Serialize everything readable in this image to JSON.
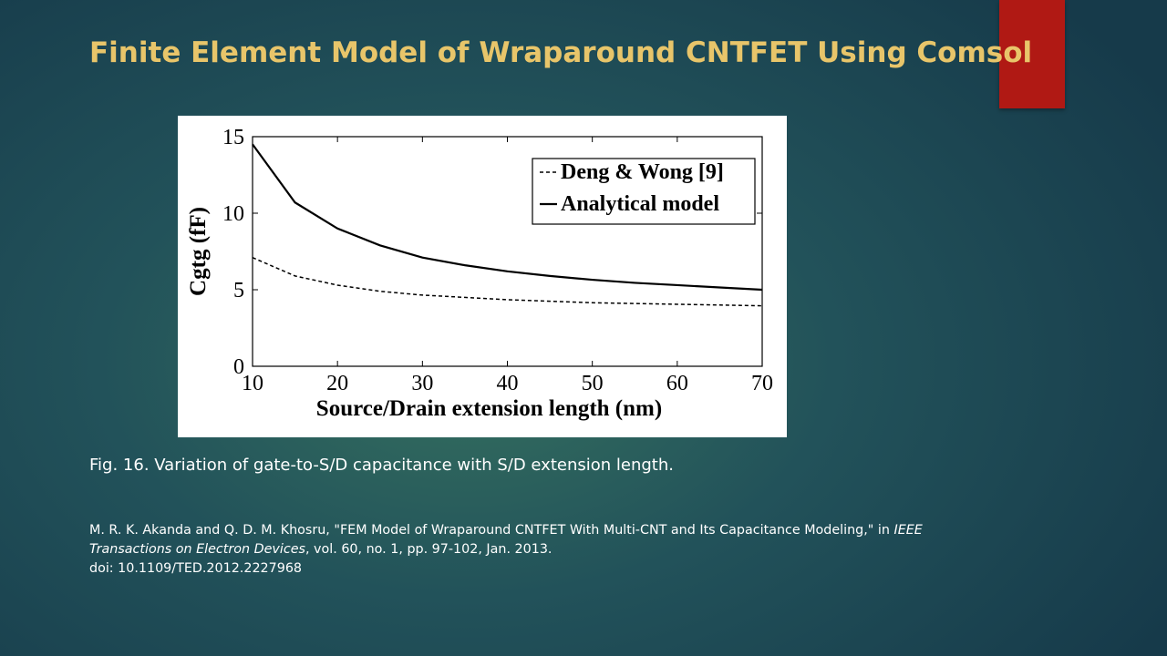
{
  "slide": {
    "title": "Finite Element Model of Wraparound  CNTFET Using Comsol",
    "accent_color": "#b01914",
    "title_color": "#e8c56a"
  },
  "caption": "Fig. 16. Variation of gate-to-S/D capacitance with S/D extension length.",
  "reference": {
    "part1": "M. R. K. Akanda and Q. D. M. Khosru, \"FEM Model of Wraparound CNTFET With Multi-CNT and Its Capacitance Modeling,\" in ",
    "journal": "IEEE Transactions on Electron Devices",
    "part2": ", vol. 60, no. 1, pp. 97-102, Jan. 2013.",
    "doi": "doi: 10.1109/TED.2012.2227968"
  },
  "chart_data": {
    "type": "line",
    "xlabel": "Source/Drain extension length (nm)",
    "ylabel": "Cgtg (fF)",
    "xlim": [
      10,
      70
    ],
    "ylim": [
      0,
      15
    ],
    "xticks": [
      10,
      20,
      30,
      40,
      50,
      60,
      70
    ],
    "yticks": [
      0,
      5,
      10,
      15
    ],
    "legend_position": "top-right",
    "series": [
      {
        "name": "Deng & Wong [9]",
        "style": "dashed",
        "x": [
          10,
          15,
          20,
          25,
          30,
          35,
          40,
          45,
          50,
          55,
          60,
          65,
          70
        ],
        "y": [
          7.1,
          5.9,
          5.3,
          4.9,
          4.65,
          4.5,
          4.35,
          4.25,
          4.15,
          4.1,
          4.05,
          4.0,
          3.95
        ]
      },
      {
        "name": "Analytical model",
        "style": "solid",
        "x": [
          10,
          15,
          20,
          25,
          30,
          35,
          40,
          45,
          50,
          55,
          60,
          65,
          70
        ],
        "y": [
          14.5,
          10.7,
          9.0,
          7.9,
          7.1,
          6.6,
          6.2,
          5.9,
          5.65,
          5.45,
          5.3,
          5.15,
          5.0
        ]
      }
    ]
  }
}
